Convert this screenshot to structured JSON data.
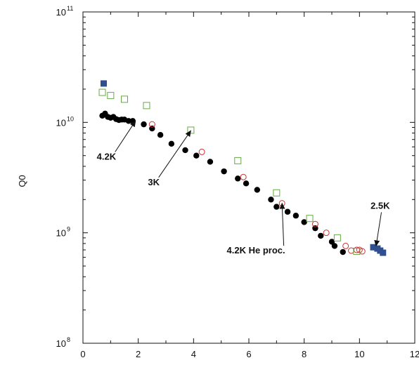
{
  "chart_data": {
    "type": "scatter",
    "title": "",
    "xlabel": "",
    "ylabel": "Q0",
    "xlim": [
      0,
      12
    ],
    "ylim": [
      100000000,
      100000000000
    ],
    "yscale": "log",
    "grid": false,
    "x_ticks": [
      "0",
      "2",
      "4",
      "6",
      "8",
      "10",
      "12"
    ],
    "y_ticks": [
      {
        "base": "10",
        "exp": "8",
        "value": 100000000
      },
      {
        "base": "10",
        "exp": "9",
        "value": 1000000000
      },
      {
        "base": "10",
        "exp": "10",
        "value": 10000000000
      },
      {
        "base": "10",
        "exp": "11",
        "value": 100000000000
      }
    ],
    "series": [
      {
        "marker": "filled-circle",
        "color": "#000000",
        "points": [
          [
            0.7,
            11500000000.0
          ],
          [
            0.8,
            12000000000.0
          ],
          [
            0.9,
            11200000000.0
          ],
          [
            1.0,
            11000000000.0
          ],
          [
            1.1,
            11200000000.0
          ],
          [
            1.2,
            10700000000.0
          ],
          [
            1.3,
            10500000000.0
          ],
          [
            1.4,
            10600000000.0
          ],
          [
            1.5,
            10600000000.0
          ],
          [
            1.65,
            10300000000.0
          ],
          [
            1.8,
            10300000000.0
          ],
          [
            2.2,
            9600000000.0
          ],
          [
            2.5,
            8800000000.0
          ],
          [
            2.8,
            7700000000.0
          ],
          [
            3.2,
            6400000000.0
          ],
          [
            3.7,
            5600000000.0
          ],
          [
            4.1,
            5000000000.0
          ],
          [
            4.6,
            4400000000.0
          ],
          [
            5.1,
            3600000000.0
          ],
          [
            5.6,
            3100000000.0
          ],
          [
            5.9,
            2800000000.0
          ],
          [
            6.3,
            2450000000.0
          ],
          [
            6.8,
            2000000000.0
          ],
          [
            7.0,
            1720000000.0
          ],
          [
            7.4,
            1550000000.0
          ],
          [
            7.7,
            1430000000.0
          ],
          [
            8.0,
            1250000000.0
          ],
          [
            8.4,
            1100000000.0
          ],
          [
            8.6,
            940000000.0
          ],
          [
            9.0,
            830000000.0
          ],
          [
            9.1,
            760000000.0
          ],
          [
            9.4,
            670000000.0
          ]
        ]
      },
      {
        "marker": "open-circle",
        "color": "#cc3333",
        "points": [
          [
            2.5,
            9600000000.0
          ],
          [
            4.3,
            5400000000.0
          ],
          [
            5.8,
            3200000000.0
          ],
          [
            7.2,
            1850000000.0
          ],
          [
            8.4,
            1200000000.0
          ],
          [
            8.8,
            1000000000.0
          ],
          [
            9.5,
            760000000.0
          ],
          [
            9.7,
            690000000.0
          ],
          [
            9.9,
            700000000.0
          ],
          [
            10.0,
            700000000.0
          ],
          [
            10.1,
            680000000.0
          ]
        ]
      },
      {
        "marker": "open-square",
        "color": "#66aa44",
        "points": [
          [
            0.7,
            18700000000.0
          ],
          [
            1.0,
            17500000000.0
          ],
          [
            1.5,
            16200000000.0
          ],
          [
            2.3,
            14200000000.0
          ],
          [
            3.9,
            8500000000.0
          ],
          [
            5.6,
            4500000000.0
          ],
          [
            7.0,
            2300000000.0
          ],
          [
            8.2,
            1350000000.0
          ],
          [
            9.2,
            900000000.0
          ],
          [
            9.9,
            680000000.0
          ]
        ]
      },
      {
        "marker": "filled-square",
        "color": "#2f4f8f",
        "points": [
          [
            0.75,
            22500000000.0
          ],
          [
            10.5,
            740000000.0
          ],
          [
            10.65,
            720000000.0
          ],
          [
            10.75,
            690000000.0
          ],
          [
            10.85,
            660000000.0
          ]
        ]
      }
    ],
    "annotations": [
      {
        "text": "4.2K",
        "tx": 0.5,
        "ty": 4600000000.0,
        "ax": 1.9,
        "ay": 10300000000.0
      },
      {
        "text": "3K",
        "tx": 2.35,
        "ty": 2700000000.0,
        "ax": 3.9,
        "ay": 8400000000.0
      },
      {
        "text": "4.2K He proc.",
        "tx": 5.2,
        "ty": 650000000.0,
        "ax": 7.2,
        "ay": 1850000000.0
      },
      {
        "text": "2.5K",
        "tx": 10.4,
        "ty": 1650000000.0,
        "ax": 10.6,
        "ay": 760000000.0
      }
    ]
  }
}
